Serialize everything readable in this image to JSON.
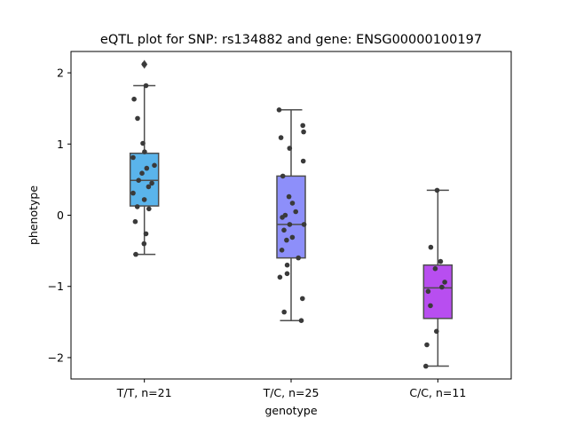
{
  "chart_data": {
    "type": "box",
    "title": "eQTL plot for SNP: rs134882 and gene: ENSG00000100197",
    "xlabel": "genotype",
    "ylabel": "phenotype",
    "ylim": [
      -2.3,
      2.3
    ],
    "yticks": [
      -2,
      -1,
      0,
      1,
      2
    ],
    "ytick_labels": [
      "−2",
      "−1",
      "0",
      "1",
      "2"
    ],
    "grid": false,
    "categories": [
      "T/T, n=21",
      "T/C, n=25",
      "C/C, n=11"
    ],
    "colors": [
      "#5ab4eb",
      "#8d8ffa",
      "#b84ef0"
    ],
    "boxes": [
      {
        "whislo": -0.55,
        "q1": 0.13,
        "med": 0.49,
        "q3": 0.87,
        "whishi": 1.82,
        "fliers": [
          2.12
        ]
      },
      {
        "whislo": -1.48,
        "q1": -0.6,
        "med": -0.13,
        "q3": 0.55,
        "whishi": 1.48,
        "fliers": []
      },
      {
        "whislo": -2.12,
        "q1": -1.45,
        "med": -1.02,
        "q3": -0.7,
        "whishi": 0.35,
        "fliers": []
      }
    ],
    "points": [
      [
        2.12,
        1.82,
        1.63,
        1.36,
        1.01,
        0.89,
        0.81,
        0.7,
        0.66,
        0.59,
        0.49,
        0.45,
        0.4,
        0.31,
        0.22,
        0.12,
        0.09,
        -0.09,
        -0.26,
        -0.4,
        -0.55
      ],
      [
        1.48,
        1.26,
        1.17,
        1.09,
        0.94,
        0.76,
        0.55,
        0.26,
        0.17,
        0.05,
        0.0,
        -0.03,
        -0.13,
        -0.13,
        -0.21,
        -0.31,
        -0.35,
        -0.49,
        -0.6,
        -0.7,
        -0.82,
        -0.87,
        -1.17,
        -1.36,
        -1.48
      ],
      [
        0.35,
        -0.45,
        -0.65,
        -0.75,
        -0.94,
        -1.01,
        -1.07,
        -1.27,
        -1.63,
        -1.82,
        -2.12
      ]
    ]
  }
}
